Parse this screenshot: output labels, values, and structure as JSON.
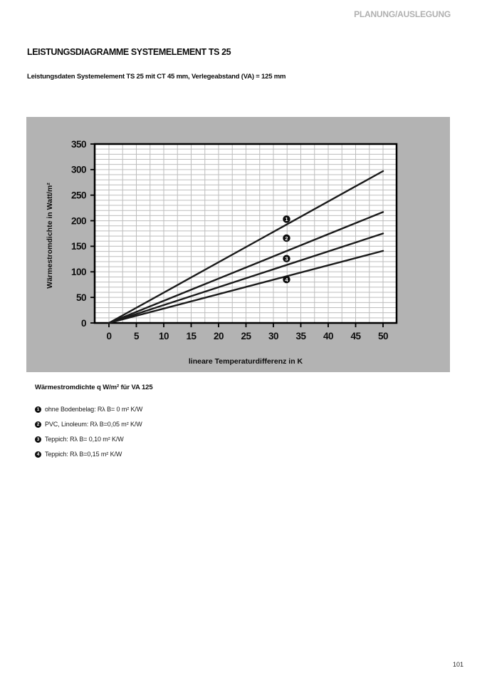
{
  "page": {
    "header": "PLANUNG/AUSLEGUNG",
    "title": "LEISTUNGSDIAGRAMME SYSTEMELEMENT TS 25",
    "subtitle": "Leistungsdaten Systemelement TS 25 mit CT 45 mm, Verlegeabstand (VA) = 125 mm",
    "page_number": "101"
  },
  "legend": {
    "heading": "Wärmestromdichte q W/m² für VA 125",
    "items": [
      {
        "num": "1",
        "text": "ohne Bodenbelag: Rλ B= 0 m² K/W"
      },
      {
        "num": "2",
        "text": "PVC, Linoleum: Rλ B=0,05 m² K/W"
      },
      {
        "num": "3",
        "text": "Teppich: Rλ B= 0,10 m² K/W"
      },
      {
        "num": "4",
        "text": "Teppich: Rλ B=0,15 m² K/W"
      }
    ]
  },
  "chart_data": {
    "type": "line",
    "title": "",
    "xlabel": "lineare Temperaturdifferenz in K",
    "ylabel": "Wärmestromdichte in Watt/m²",
    "xlim": [
      0,
      50
    ],
    "ylim": [
      0,
      350
    ],
    "xticks": [
      0,
      5,
      10,
      15,
      20,
      25,
      30,
      35,
      40,
      45,
      50
    ],
    "yticks": [
      0,
      50,
      100,
      150,
      200,
      250,
      300,
      350
    ],
    "x_minor_step": 2.5,
    "y_minor_step": 10,
    "grid": true,
    "legend_position": "below-as-numbered-list",
    "colors": {
      "panel_bg": "#b3b3b3",
      "plot_bg": "#ffffff",
      "grid": "#bdbdbd",
      "frame": "#000000",
      "line": "#1a1a1a"
    },
    "series": [
      {
        "name": "1",
        "x": [
          0,
          50
        ],
        "y": [
          0,
          297
        ],
        "marker": {
          "x": 32.4,
          "y": 203,
          "text": "1"
        }
      },
      {
        "name": "2",
        "x": [
          0,
          50
        ],
        "y": [
          0,
          217
        ],
        "marker": {
          "x": 32.4,
          "y": 166,
          "text": "2"
        }
      },
      {
        "name": "3",
        "x": [
          0,
          50
        ],
        "y": [
          0,
          175
        ],
        "marker": {
          "x": 32.4,
          "y": 126,
          "text": "3"
        }
      },
      {
        "name": "4",
        "x": [
          0,
          50
        ],
        "y": [
          0,
          141
        ],
        "marker": {
          "x": 32.4,
          "y": 85,
          "text": "4"
        }
      }
    ]
  }
}
